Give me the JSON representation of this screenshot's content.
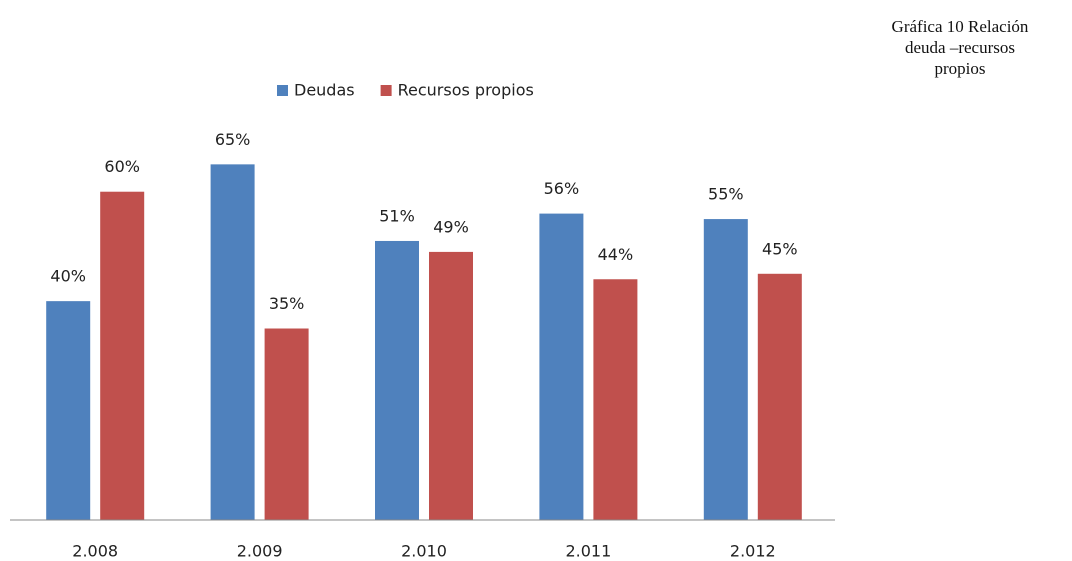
{
  "chart_data": {
    "type": "bar",
    "title": "Gráfica 10 Relación deuda –recursos propios",
    "categories": [
      "2.008",
      "2.009",
      "2.010",
      "2.011",
      "2.012"
    ],
    "series": [
      {
        "name": "Deudas",
        "color": "#4f81bd",
        "values": [
          40,
          65,
          51,
          56,
          55
        ],
        "value_labels": [
          "40%",
          "65%",
          "51%",
          "56%",
          "55%"
        ]
      },
      {
        "name": "Recursos propios",
        "color": "#c0504d",
        "values": [
          60,
          35,
          49,
          44,
          45
        ],
        "value_labels": [
          "60%",
          "35%",
          "49%",
          "44%",
          "45%"
        ]
      }
    ],
    "ylim": [
      0,
      70
    ],
    "legend": "top"
  }
}
